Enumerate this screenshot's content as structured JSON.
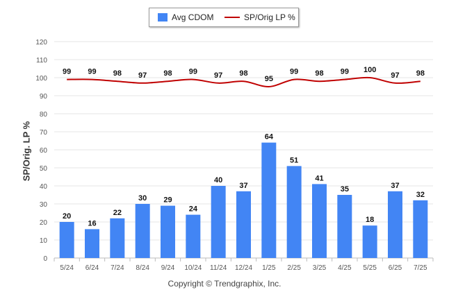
{
  "chart_data": {
    "type": "bar",
    "categories": [
      "5/24",
      "6/24",
      "7/24",
      "8/24",
      "9/24",
      "10/24",
      "11/24",
      "12/24",
      "1/25",
      "2/25",
      "3/25",
      "4/25",
      "5/25",
      "6/25",
      "7/25"
    ],
    "series": [
      {
        "name": "Avg CDOM",
        "type": "bar",
        "color": "#4285f4",
        "values": [
          20,
          16,
          22,
          30,
          29,
          24,
          40,
          37,
          64,
          51,
          41,
          35,
          18,
          37,
          32
        ]
      },
      {
        "name": "SP/Orig LP %",
        "type": "line",
        "color": "#c00000",
        "values": [
          99,
          99,
          98,
          97,
          98,
          99,
          97,
          98,
          95,
          99,
          98,
          99,
          100,
          97,
          98
        ]
      }
    ],
    "ylabel": "SP/Orig. LP %",
    "xlabel": "",
    "ylim": [
      0,
      120
    ],
    "yticks": [
      0,
      10,
      20,
      30,
      40,
      50,
      60,
      70,
      80,
      90,
      100,
      110,
      120
    ],
    "grid": true,
    "legend_placement": "top-center",
    "data_labels": true
  },
  "footer": {
    "credit": "Copyright © Trendgraphix, Inc."
  }
}
